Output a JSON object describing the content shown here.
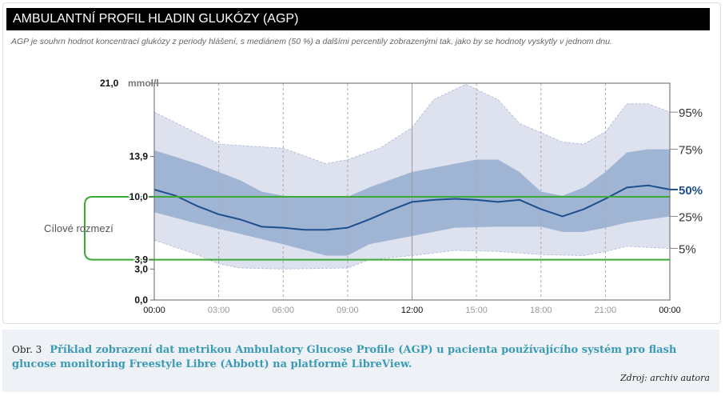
{
  "header": {
    "title": "AMBULANTNÍ PROFIL HLADIN GLUKÓZY (AGP)",
    "subtitle": "AGP je souhrn hodnot koncentrací glukózy z periody hlášení, s mediánem (50 %) a dalšími percentily zobrazenými tak, jako by se hodnoty vyskytly v jednom dnu."
  },
  "chart_data": {
    "type": "area",
    "y_unit": "mmol/l",
    "ylim": [
      0,
      21
    ],
    "xlim": [
      0,
      24
    ],
    "y_ticks": [
      {
        "v": 21,
        "label": "21,0"
      },
      {
        "v": 13.9,
        "label": "13,9"
      },
      {
        "v": 10,
        "label": "10,0"
      },
      {
        "v": 3.9,
        "label": "3,9"
      },
      {
        "v": 3,
        "label": "3,0"
      },
      {
        "v": 0,
        "label": "0,0"
      }
    ],
    "x_ticks": [
      {
        "v": 0,
        "label": "00:00"
      },
      {
        "v": 3,
        "label": "03:00"
      },
      {
        "v": 6,
        "label": "06:00"
      },
      {
        "v": 9,
        "label": "09:00"
      },
      {
        "v": 12,
        "label": "12:00"
      },
      {
        "v": 15,
        "label": "15:00"
      },
      {
        "v": 18,
        "label": "18:00"
      },
      {
        "v": 21,
        "label": "21:00"
      },
      {
        "v": 24,
        "label": "00:00"
      }
    ],
    "target_range": {
      "label": "Cílové rozmezí",
      "low": 3.9,
      "high": 10.0,
      "color": "#3aaa35"
    },
    "colors": {
      "outer_band": "#dde2ee",
      "inner_band": "#a0b5d4",
      "median": "#1d4f8f"
    },
    "series": [
      {
        "name": "95%",
        "x": [
          0,
          3,
          6,
          8,
          9,
          10.5,
          12,
          13,
          14.5,
          16,
          17,
          19,
          20,
          21,
          22,
          23,
          24
        ],
        "values": [
          18.2,
          15.1,
          14.7,
          13.2,
          13.6,
          14.7,
          16.7,
          19.4,
          20.9,
          19.4,
          17.1,
          15.3,
          15.1,
          16.3,
          19.0,
          19.0,
          18.2
        ]
      },
      {
        "name": "75%",
        "x": [
          0,
          2,
          3,
          4,
          5,
          6,
          8,
          9,
          10,
          12,
          13,
          15,
          16,
          17,
          18,
          19,
          20,
          21,
          22,
          23,
          24
        ],
        "values": [
          14.5,
          13.2,
          12.4,
          11.6,
          10.5,
          10.1,
          10.0,
          10.0,
          10.9,
          12.4,
          12.8,
          13.6,
          13.6,
          12.4,
          10.5,
          10.1,
          10.9,
          12.4,
          14.3,
          14.6,
          14.6
        ]
      },
      {
        "name": "50%",
        "x": [
          0,
          1,
          2,
          3,
          4,
          5,
          6,
          7,
          8,
          9,
          10,
          11,
          12,
          13,
          14,
          15,
          16,
          17,
          18,
          19,
          20,
          21,
          22,
          23,
          24
        ],
        "values": [
          10.7,
          10.1,
          9.1,
          8.3,
          7.8,
          7.1,
          7.0,
          6.8,
          6.8,
          7.0,
          7.8,
          8.7,
          9.5,
          9.7,
          9.8,
          9.7,
          9.5,
          9.7,
          8.8,
          8.1,
          8.8,
          9.8,
          10.9,
          11.1,
          10.7
        ]
      },
      {
        "name": "25%",
        "x": [
          0,
          2,
          4,
          6,
          8,
          9,
          10,
          12,
          14,
          16,
          18,
          19,
          20,
          21,
          22,
          24
        ],
        "values": [
          8.5,
          7.4,
          6.4,
          5.4,
          4.3,
          4.3,
          5.4,
          6.2,
          7.0,
          7.1,
          7.1,
          6.6,
          6.6,
          7.0,
          7.5,
          8.1
        ]
      },
      {
        "name": "5%",
        "x": [
          0,
          2,
          3,
          4,
          6,
          9,
          10,
          12,
          14,
          16,
          18,
          20,
          21,
          22,
          24
        ],
        "values": [
          5.8,
          4.4,
          3.5,
          3.1,
          3.0,
          3.1,
          3.9,
          4.3,
          4.8,
          4.7,
          4.4,
          4.3,
          4.7,
          5.2,
          5.0
        ]
      }
    ]
  },
  "caption": {
    "number": "Obr. 3",
    "text": "Příklad zobrazení dat metrikou Ambulatory Glucose Profile (AGP) u pacienta používajícího systém pro flash glucose monitoring Freestyle Libre (Abbott) na platformě LibreView.",
    "source": "Zdroj: archiv autora"
  }
}
